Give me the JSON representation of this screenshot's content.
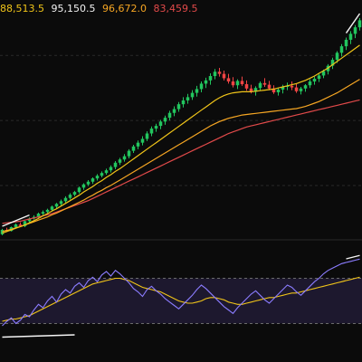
{
  "ma_readout": {
    "values": [
      "88,513.5",
      "95,150.5",
      "96,672.0",
      "83,459.5"
    ],
    "colors": [
      "#f0c419",
      "#f2f2f2",
      "#f6a623",
      "#e24a4a"
    ]
  },
  "theme": {
    "background": "#0b0b0b",
    "panel_divider": "#2a2a2a",
    "grid": "#2a2a2a",
    "bull": "#22c55e",
    "bear": "#ef4444",
    "ma_fast": "#f0c419",
    "ma_mid": "#f6a623",
    "ma_slow": "#e24a4a",
    "trendline": "#f5f5f5",
    "rsi_line": "#8b7cff",
    "rsi_signal": "#f0c419",
    "rsi_band": "#2a2246"
  },
  "chart_data": {
    "type": "candlestick",
    "candles": [
      [
        90,
        100,
        88,
        98
      ],
      [
        98,
        102,
        94,
        96
      ],
      [
        96,
        104,
        95,
        103
      ],
      [
        103,
        110,
        101,
        108
      ],
      [
        108,
        112,
        104,
        105
      ],
      [
        105,
        115,
        103,
        114
      ],
      [
        114,
        121,
        112,
        119
      ],
      [
        119,
        125,
        117,
        122
      ],
      [
        122,
        130,
        120,
        128
      ],
      [
        128,
        134,
        125,
        131
      ],
      [
        131,
        137,
        128,
        135
      ],
      [
        135,
        143,
        132,
        141
      ],
      [
        141,
        148,
        138,
        146
      ],
      [
        146,
        154,
        143,
        151
      ],
      [
        151,
        160,
        148,
        157
      ],
      [
        157,
        166,
        154,
        163
      ],
      [
        163,
        170,
        160,
        168
      ],
      [
        168,
        178,
        165,
        176
      ],
      [
        176,
        184,
        172,
        182
      ],
      [
        182,
        190,
        179,
        187
      ],
      [
        187,
        195,
        183,
        193
      ],
      [
        193,
        201,
        189,
        198
      ],
      [
        198,
        206,
        195,
        203
      ],
      [
        203,
        211,
        200,
        208
      ],
      [
        208,
        217,
        204,
        214
      ],
      [
        214,
        225,
        210,
        222
      ],
      [
        222,
        231,
        218,
        228
      ],
      [
        228,
        238,
        224,
        234
      ],
      [
        234,
        247,
        230,
        244
      ],
      [
        244,
        255,
        240,
        252
      ],
      [
        252,
        263,
        247,
        259
      ],
      [
        259,
        271,
        254,
        266
      ],
      [
        266,
        280,
        262,
        276
      ],
      [
        276,
        289,
        271,
        285
      ],
      [
        285,
        294,
        279,
        290
      ],
      [
        290,
        301,
        284,
        298
      ],
      [
        298,
        309,
        292,
        305
      ],
      [
        305,
        318,
        300,
        314
      ],
      [
        314,
        326,
        308,
        321
      ],
      [
        321,
        334,
        316,
        330
      ],
      [
        330,
        343,
        324,
        337
      ],
      [
        337,
        349,
        331,
        343
      ],
      [
        343,
        356,
        338,
        351
      ],
      [
        351,
        364,
        344,
        358
      ],
      [
        358,
        372,
        352,
        368
      ],
      [
        368,
        379,
        360,
        374
      ],
      [
        374,
        387,
        366,
        382
      ],
      [
        382,
        395,
        376,
        390
      ],
      [
        390,
        397,
        381,
        386
      ],
      [
        386,
        392,
        374,
        378
      ],
      [
        378,
        386,
        368,
        372
      ],
      [
        372,
        380,
        361,
        365
      ],
      [
        365,
        376,
        358,
        373
      ],
      [
        373,
        381,
        364,
        367
      ],
      [
        367,
        374,
        355,
        359
      ],
      [
        359,
        366,
        350,
        353
      ],
      [
        353,
        363,
        346,
        360
      ],
      [
        360,
        372,
        355,
        369
      ],
      [
        369,
        378,
        362,
        366
      ],
      [
        366,
        373,
        356,
        359
      ],
      [
        359,
        365,
        349,
        352
      ],
      [
        352,
        360,
        346,
        357
      ],
      [
        357,
        366,
        350,
        362
      ],
      [
        362,
        370,
        356,
        364
      ],
      [
        364,
        372,
        356,
        361
      ],
      [
        361,
        368,
        351,
        354
      ],
      [
        354,
        362,
        348,
        359
      ],
      [
        359,
        367,
        353,
        365
      ],
      [
        365,
        376,
        360,
        372
      ],
      [
        372,
        381,
        366,
        377
      ],
      [
        377,
        386,
        371,
        383
      ],
      [
        383,
        394,
        378,
        391
      ],
      [
        391,
        404,
        385,
        401
      ],
      [
        401,
        416,
        395,
        412
      ],
      [
        412,
        428,
        406,
        425
      ],
      [
        425,
        441,
        418,
        437
      ],
      [
        437,
        453,
        430,
        449
      ],
      [
        449,
        465,
        441,
        460
      ],
      [
        460,
        476,
        452,
        472
      ],
      [
        472,
        489,
        466,
        485
      ]
    ],
    "ma_fast": [
      92,
      95,
      98,
      101,
      104,
      107,
      111,
      115,
      119,
      124,
      128,
      133,
      137,
      142,
      147,
      152,
      157,
      162,
      168,
      173,
      178,
      184,
      189,
      195,
      200,
      206,
      211,
      217,
      223,
      229,
      235,
      241,
      247,
      253,
      259,
      265,
      271,
      277,
      283,
      289,
      295,
      301,
      307,
      313,
      319,
      325,
      331,
      337,
      342,
      346,
      349,
      351,
      352,
      353,
      353,
      353,
      354,
      355,
      356,
      357,
      358,
      360,
      362,
      364,
      366,
      368,
      371,
      374,
      378,
      382,
      387,
      392,
      397,
      403,
      409,
      415,
      421,
      427,
      433,
      439
    ],
    "ma_mid": [
      95,
      97,
      99,
      102,
      104,
      107,
      110,
      113,
      116,
      119,
      122,
      126,
      129,
      133,
      137,
      141,
      145,
      149,
      153,
      158,
      162,
      167,
      171,
      176,
      180,
      185,
      190,
      195,
      200,
      205,
      210,
      215,
      220,
      225,
      230,
      235,
      240,
      245,
      250,
      255,
      260,
      265,
      270,
      275,
      280,
      285,
      290,
      294,
      298,
      301,
      304,
      306,
      308,
      310,
      311,
      312,
      313,
      314,
      315,
      316,
      317,
      318,
      319,
      320,
      321,
      322,
      324,
      326,
      329,
      332,
      335,
      339,
      343,
      347,
      351,
      356,
      361,
      366,
      371,
      376
    ],
    "ma_slow": [
      110,
      111,
      112,
      113,
      114,
      116,
      118,
      120,
      122,
      124,
      126,
      128,
      131,
      134,
      137,
      140,
      143,
      146,
      149,
      152,
      156,
      160,
      164,
      168,
      172,
      176,
      180,
      184,
      188,
      192,
      196,
      200,
      204,
      208,
      212,
      216,
      220,
      224,
      228,
      232,
      236,
      240,
      244,
      248,
      252,
      256,
      260,
      264,
      268,
      272,
      276,
      279,
      282,
      285,
      288,
      290,
      292,
      294,
      296,
      298,
      300,
      302,
      304,
      306,
      308,
      310,
      312,
      314,
      316,
      318,
      320,
      322,
      324,
      326,
      328,
      330,
      332,
      334,
      336,
      338
    ],
    "rsi": [
      28,
      32,
      35,
      30,
      33,
      38,
      36,
      42,
      47,
      44,
      50,
      54,
      49,
      56,
      60,
      57,
      63,
      66,
      62,
      68,
      71,
      67,
      73,
      76,
      72,
      77,
      74,
      70,
      66,
      61,
      58,
      54,
      60,
      63,
      59,
      56,
      52,
      49,
      46,
      43,
      47,
      51,
      55,
      60,
      64,
      61,
      57,
      53,
      49,
      45,
      42,
      39,
      44,
      48,
      52,
      56,
      59,
      55,
      51,
      48,
      52,
      56,
      60,
      64,
      62,
      58,
      55,
      59,
      63,
      67,
      70,
      74,
      77,
      79,
      81,
      83,
      84,
      85,
      86,
      87
    ],
    "rsi_signal": [
      32,
      33,
      34,
      34,
      35,
      36,
      37,
      39,
      41,
      43,
      45,
      47,
      49,
      51,
      53,
      55,
      57,
      59,
      61,
      63,
      65,
      66,
      67,
      68,
      69,
      70,
      70,
      69,
      68,
      66,
      64,
      62,
      61,
      60,
      59,
      58,
      56,
      54,
      52,
      50,
      49,
      48,
      48,
      49,
      50,
      52,
      53,
      53,
      52,
      51,
      49,
      48,
      47,
      47,
      48,
      49,
      50,
      51,
      52,
      53,
      53,
      54,
      55,
      56,
      57,
      57,
      58,
      59,
      60,
      61,
      62,
      63,
      64,
      65,
      66,
      67,
      68,
      69,
      70,
      71
    ],
    "rsi_bands": [
      30,
      70
    ],
    "price_grid_levels": [
      420,
      300,
      180
    ]
  }
}
